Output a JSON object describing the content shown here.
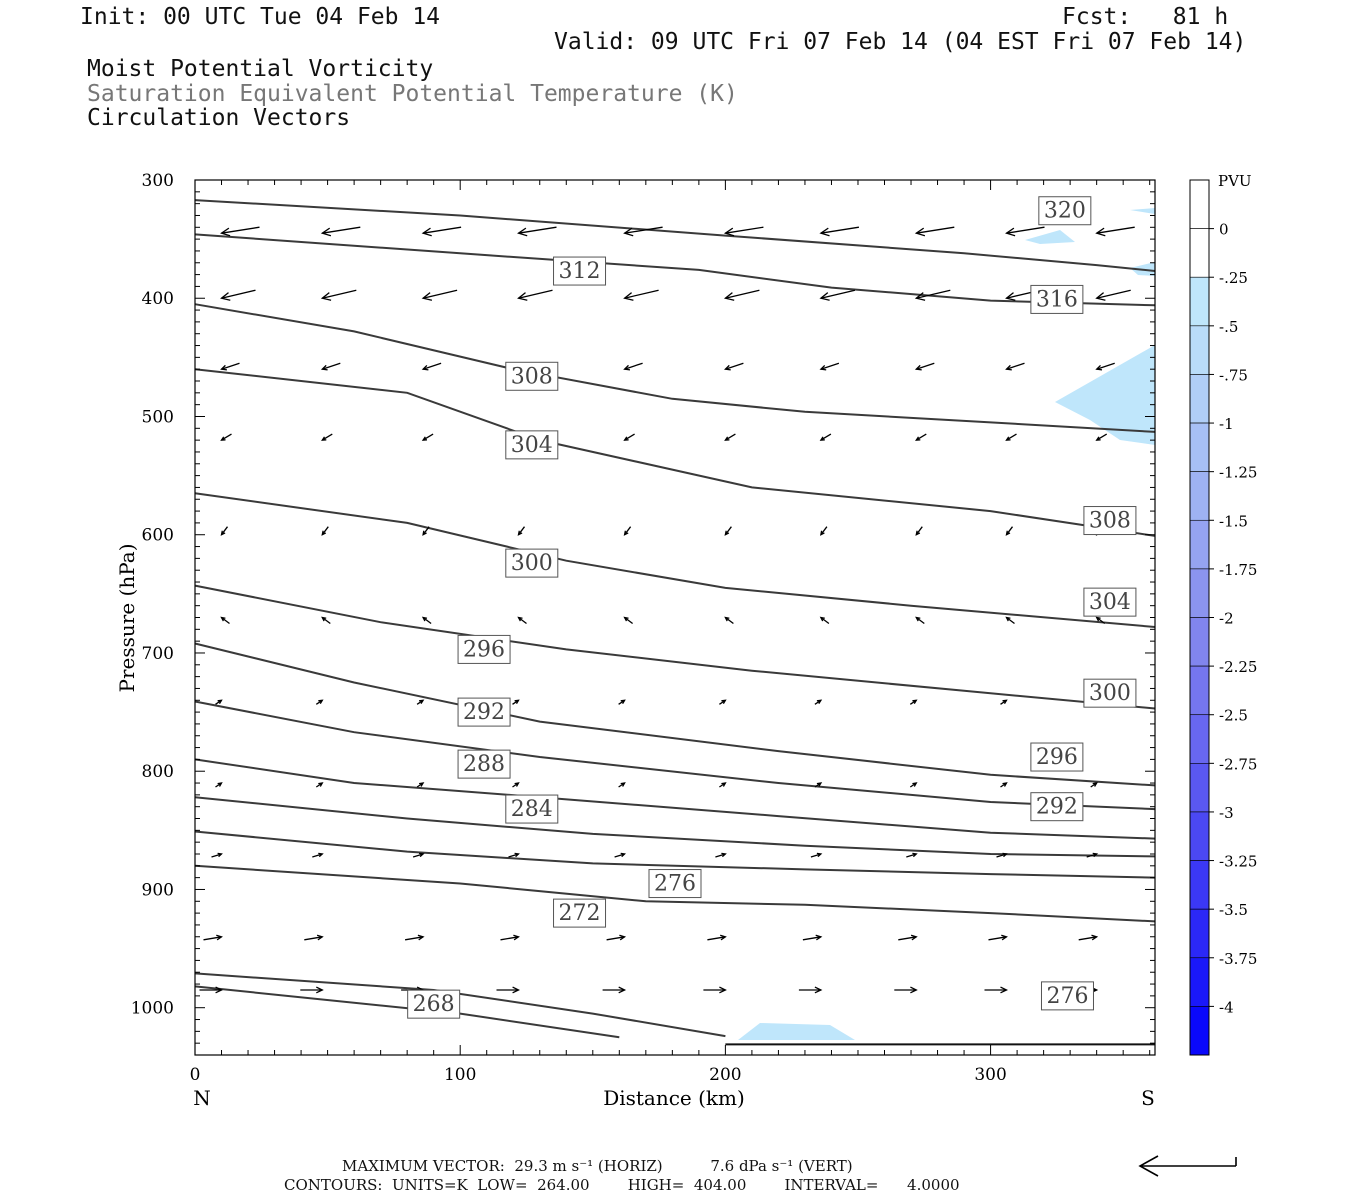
{
  "header": {
    "init": "Init: 00 UTC Tue 04 Feb 14",
    "fcst": "Fcst:   81 h",
    "valid": "Valid: 09 UTC Fri 07 Feb 14 (04 EST Fri 07 Feb 14)",
    "field1": "Moist Potential Vorticity",
    "field2": "Saturation Equivalent Potential Temperature (K)",
    "field3": "Circulation Vectors"
  },
  "colors": {
    "contour": "#3a3a3a",
    "mpv_light": "#bfe6fb",
    "frame": "#000000"
  },
  "chart_data": {
    "type": "cross-section",
    "xlabel": "Distance (km)",
    "ylabel": "Pressure (hPa)",
    "xlim": [
      0,
      362
    ],
    "ylim": [
      300,
      1040
    ],
    "x_ticks": [
      "0",
      "100",
      "200",
      "300"
    ],
    "y_ticks": [
      "300",
      "400",
      "500",
      "600",
      "700",
      "800",
      "900",
      "1000"
    ],
    "left_end_label": "N",
    "right_end_label": "S",
    "contour_interval": 4,
    "contours": [
      {
        "value": 320,
        "points": [
          [
            0,
            317
          ],
          [
            100,
            330
          ],
          [
            200,
            347
          ],
          [
            290,
            362
          ],
          [
            340,
            372
          ],
          [
            362,
            377
          ]
        ]
      },
      {
        "value": 316,
        "points": [
          [
            0,
            346
          ],
          [
            100,
            362
          ],
          [
            190,
            376
          ],
          [
            240,
            391
          ],
          [
            300,
            402
          ],
          [
            362,
            406
          ]
        ]
      },
      {
        "value": 312,
        "points": [
          [
            0,
            405
          ],
          [
            60,
            428
          ],
          [
            120,
            460
          ],
          [
            180,
            485
          ],
          [
            230,
            496
          ],
          [
            300,
            505
          ],
          [
            362,
            513
          ]
        ]
      },
      {
        "value": 308,
        "points": [
          [
            0,
            460
          ],
          [
            80,
            480
          ],
          [
            130,
            520
          ],
          [
            210,
            560
          ],
          [
            300,
            580
          ],
          [
            362,
            601
          ]
        ]
      },
      {
        "value": 304,
        "points": [
          [
            0,
            565
          ],
          [
            80,
            590
          ],
          [
            140,
            622
          ],
          [
            200,
            645
          ],
          [
            270,
            660
          ],
          [
            362,
            678
          ]
        ]
      },
      {
        "value": 300,
        "points": [
          [
            0,
            643
          ],
          [
            70,
            674
          ],
          [
            140,
            697
          ],
          [
            210,
            715
          ],
          [
            290,
            732
          ],
          [
            362,
            747
          ]
        ]
      },
      {
        "value": 296,
        "points": [
          [
            0,
            692
          ],
          [
            60,
            725
          ],
          [
            130,
            758
          ],
          [
            220,
            783
          ],
          [
            300,
            803
          ],
          [
            362,
            812
          ]
        ]
      },
      {
        "value": 292,
        "points": [
          [
            0,
            741
          ],
          [
            60,
            767
          ],
          [
            130,
            788
          ],
          [
            220,
            810
          ],
          [
            300,
            826
          ],
          [
            362,
            832
          ]
        ]
      },
      {
        "value": 288,
        "points": [
          [
            0,
            790
          ],
          [
            60,
            810
          ],
          [
            130,
            822
          ],
          [
            220,
            838
          ],
          [
            300,
            852
          ],
          [
            362,
            857
          ]
        ]
      },
      {
        "value": 284,
        "points": [
          [
            0,
            822
          ],
          [
            80,
            840
          ],
          [
            150,
            853
          ],
          [
            230,
            863
          ],
          [
            300,
            870
          ],
          [
            362,
            872
          ]
        ]
      },
      {
        "value": 280,
        "points": [
          [
            0,
            851
          ],
          [
            80,
            868
          ],
          [
            150,
            878
          ],
          [
            230,
            883
          ],
          [
            300,
            887
          ],
          [
            362,
            890
          ]
        ]
      },
      {
        "value": 276,
        "points": [
          [
            0,
            880
          ],
          [
            100,
            895
          ],
          [
            170,
            910
          ],
          [
            230,
            913
          ],
          [
            300,
            920
          ],
          [
            362,
            927
          ]
        ]
      },
      {
        "value": 272,
        "points": [
          [
            0,
            971
          ],
          [
            90,
            985
          ],
          [
            150,
            1005
          ],
          [
            200,
            1024
          ]
        ]
      },
      {
        "value": 268,
        "points": [
          [
            0,
            982
          ],
          [
            100,
            1005
          ],
          [
            160,
            1025
          ]
        ]
      }
    ],
    "contour_labels": [
      {
        "value": "320",
        "x": 328,
        "p": 326
      },
      {
        "value": "316",
        "x": 325,
        "p": 401
      },
      {
        "value": "312",
        "x": 145,
        "p": 377
      },
      {
        "value": "308",
        "x": 127,
        "p": 466
      },
      {
        "value": "308",
        "x": 345,
        "p": 588
      },
      {
        "value": "304",
        "x": 127,
        "p": 524
      },
      {
        "value": "304",
        "x": 345,
        "p": 657
      },
      {
        "value": "300",
        "x": 127,
        "p": 624
      },
      {
        "value": "300",
        "x": 345,
        "p": 734
      },
      {
        "value": "296",
        "x": 109,
        "p": 697
      },
      {
        "value": "296",
        "x": 325,
        "p": 788
      },
      {
        "value": "292",
        "x": 109,
        "p": 750
      },
      {
        "value": "292",
        "x": 325,
        "p": 830
      },
      {
        "value": "288",
        "x": 109,
        "p": 794
      },
      {
        "value": "284",
        "x": 127,
        "p": 832
      },
      {
        "value": "276",
        "x": 181,
        "p": 895
      },
      {
        "value": "276",
        "x": 329,
        "p": 990
      },
      {
        "value": "272",
        "x": 145,
        "p": 920
      },
      {
        "value": "268",
        "x": 90,
        "p": 997
      }
    ],
    "mpv_legend": {
      "unit": "PVU",
      "labels": [
        "0",
        "-.25",
        "-.5",
        "-.75",
        "-1",
        "-1.25",
        "-1.5",
        "-1.75",
        "-2",
        "-2.25",
        "-2.5",
        "-2.75",
        "-3",
        "-3.25",
        "-3.5",
        "-3.75",
        "-4"
      ],
      "colors": [
        "#ffffff",
        "#ffffff",
        "#bfe6fb",
        "#b9dcf9",
        "#b0cef7",
        "#a7c0f5",
        "#9eb2f3",
        "#95a3f1",
        "#8b94ef",
        "#8185ee",
        "#7576ef",
        "#6867f0",
        "#5a58f1",
        "#4b48f3",
        "#3b38f5",
        "#2b28f7",
        "#1a18f9",
        "#0a08fb"
      ]
    },
    "max_vector": "MAXIMUM VECTOR:  29.3 m s⁻¹ (HORIZ)          7.6 dPa s⁻¹ (VERT)",
    "contours_info": "CONTOURS:  UNITS=K  LOW=  264.00        HIGH=  404.00        INTERVAL=      4.0000"
  }
}
